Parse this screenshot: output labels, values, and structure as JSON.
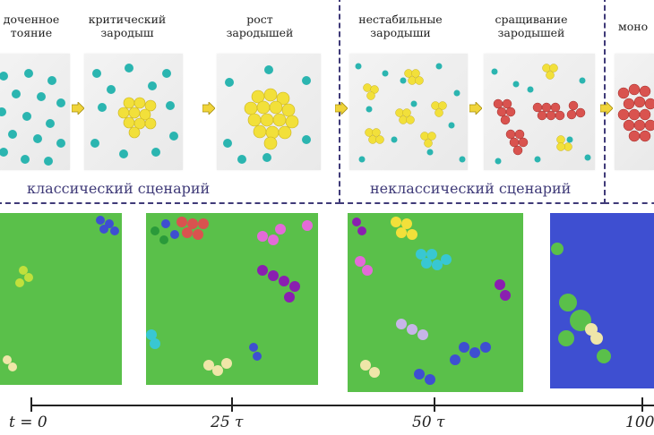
{
  "stages": [
    {
      "label": "доупорядоченное\nсостояние",
      "visible": "дoченное\nтояние"
    },
    {
      "label": "критический\nзародыш"
    },
    {
      "label": "рост\nзародышей"
    },
    {
      "label": "нестабильные\nзародыши"
    },
    {
      "label": "сращивание\nзародышей"
    },
    {
      "label": "моно"
    }
  ],
  "stage_text": [
    "дoченное\nтояние",
    "критический\nзародыш",
    "рост\nзародышей",
    "нестабильные\nзародыши",
    "сращивание\nзародышей",
    "моно"
  ],
  "scenarios": {
    "classical": "классический сценарий",
    "nonclassical": "неклассический сценарий"
  },
  "timeline": {
    "ticks": [
      "t = 0",
      "25 τ",
      "50 τ",
      "100"
    ]
  },
  "colors": {
    "border": "#3f3a78",
    "teal": "#2bb5b0",
    "yellow": "#f2e03a",
    "red": "#d9534f",
    "green": "#5ac04a",
    "blue": "#3e4fd1",
    "arrow": "#f0d43a"
  }
}
